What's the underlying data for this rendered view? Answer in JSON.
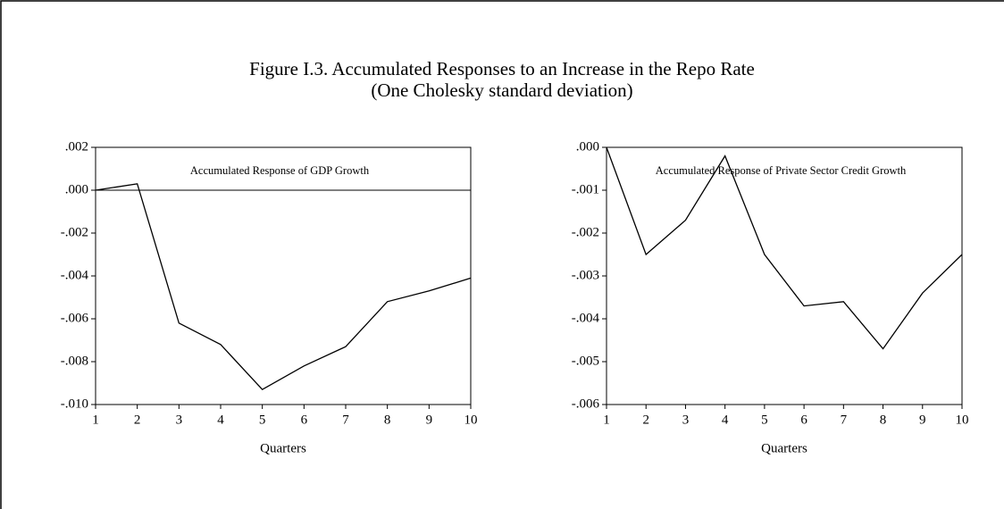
{
  "title": "Figure I.3. Accumulated Responses to an Increase in the Repo Rate",
  "subtitle": "(One Cholesky standard deviation)",
  "chart_data": [
    {
      "type": "line",
      "title": "Accumulated Response of GDP Growth",
      "xlabel": "Quarters",
      "x": [
        1,
        2,
        3,
        4,
        5,
        6,
        7,
        8,
        9,
        10
      ],
      "values": [
        0.0,
        0.0003,
        -0.0062,
        -0.0072,
        -0.0093,
        -0.0082,
        -0.0073,
        -0.0052,
        -0.0047,
        -0.0041
      ],
      "color": "#000000",
      "xlim": [
        1,
        10
      ],
      "xticks": [
        1,
        2,
        3,
        4,
        5,
        6,
        7,
        8,
        9,
        10
      ],
      "ylim": [
        -0.01,
        0.002
      ],
      "yticks": [
        {
          "value": 0.002,
          "label": ".002"
        },
        {
          "value": 0.0,
          "label": ".000"
        },
        {
          "value": -0.002,
          "label": "-.002"
        },
        {
          "value": -0.004,
          "label": "-.004"
        },
        {
          "value": -0.006,
          "label": "-.006"
        },
        {
          "value": -0.008,
          "label": "-.008"
        },
        {
          "value": -0.01,
          "label": "-.010"
        }
      ],
      "zero_line": true
    },
    {
      "type": "line",
      "title": "Accumulated Response of Private Sector Credit Growth",
      "xlabel": "Quarters",
      "x": [
        1,
        2,
        3,
        4,
        5,
        6,
        7,
        8,
        9,
        10
      ],
      "values": [
        0.0,
        -0.0025,
        -0.0017,
        -0.0002,
        -0.0025,
        -0.0037,
        -0.0036,
        -0.0047,
        -0.0034,
        -0.0025
      ],
      "color": "#000000",
      "xlim": [
        1,
        10
      ],
      "xticks": [
        1,
        2,
        3,
        4,
        5,
        6,
        7,
        8,
        9,
        10
      ],
      "ylim": [
        -0.006,
        0.0
      ],
      "yticks": [
        {
          "value": 0.0,
          "label": ".000"
        },
        {
          "value": -0.001,
          "label": "-.001"
        },
        {
          "value": -0.002,
          "label": "-.002"
        },
        {
          "value": -0.003,
          "label": "-.003"
        },
        {
          "value": -0.004,
          "label": "-.004"
        },
        {
          "value": -0.005,
          "label": "-.005"
        },
        {
          "value": -0.006,
          "label": "-.006"
        }
      ],
      "zero_line": false
    }
  ]
}
